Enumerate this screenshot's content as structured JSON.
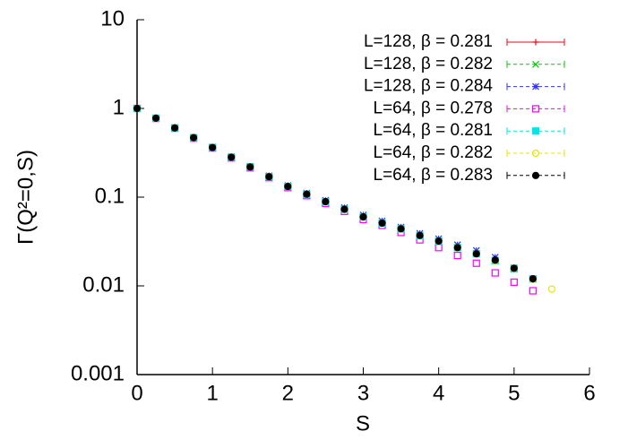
{
  "chart_data": {
    "type": "scatter",
    "y_label": "Γ(Q²=0,S)",
    "x_label": "S",
    "log_y": true,
    "legend": "top-right",
    "xlim": [
      0,
      6
    ],
    "xticks": [
      0,
      1,
      2,
      3,
      4,
      5,
      6
    ],
    "ylim": [
      0.001,
      10
    ],
    "yticks": [
      10,
      1,
      0.1,
      0.01,
      0.001
    ],
    "x": [
      0,
      0.25,
      0.5,
      0.75,
      1,
      1.25,
      1.5,
      1.75,
      2,
      2.25,
      2.5,
      2.75,
      3,
      3.25,
      3.5,
      3.75,
      4,
      4.25,
      4.5,
      4.75,
      5,
      5.25,
      5.5
    ],
    "series": [
      {
        "name": "L=128, β = 0.281",
        "color": "#ff0000",
        "marker": "plus",
        "values": [
          1,
          0.776,
          0.603,
          0.468,
          0.363,
          0.282,
          0.219,
          0.17,
          0.132,
          0.108,
          0.089,
          0.073,
          0.06,
          0.051,
          0.044,
          0.037,
          0.032,
          0.027,
          0.023,
          0.0195,
          0.0158,
          0.0122,
          null
        ]
      },
      {
        "name": "L=128, β = 0.282",
        "color": "#00cc00",
        "marker": "cross",
        "values": [
          1,
          0.776,
          0.603,
          0.468,
          0.363,
          0.282,
          0.219,
          0.17,
          0.132,
          0.108,
          0.089,
          0.073,
          0.06,
          0.051,
          0.044,
          0.037,
          0.032,
          0.027,
          0.023,
          0.0195,
          0.016,
          null,
          null
        ]
      },
      {
        "name": "L=128, β = 0.284",
        "color": "#3333ff",
        "marker": "star",
        "values": [
          1,
          0.78,
          0.608,
          0.472,
          0.367,
          0.286,
          0.223,
          0.174,
          0.135,
          0.111,
          0.092,
          0.076,
          0.063,
          0.054,
          0.046,
          0.039,
          0.034,
          0.029,
          0.025,
          0.021,
          null,
          null,
          null
        ]
      },
      {
        "name": "L=64, β = 0.278",
        "color": "#ff00ff",
        "marker": "square-open",
        "values": [
          1,
          0.772,
          0.598,
          0.462,
          0.358,
          0.277,
          0.214,
          0.166,
          0.128,
          0.104,
          0.085,
          0.069,
          0.056,
          0.048,
          0.04,
          0.033,
          0.027,
          0.022,
          0.018,
          0.014,
          0.011,
          0.0088,
          null
        ]
      },
      {
        "name": "L=64, β = 0.281",
        "color": "#00e5e5",
        "marker": "square-filled",
        "values": [
          1,
          0.776,
          0.603,
          0.468,
          0.363,
          0.282,
          0.219,
          0.17,
          0.132,
          0.108,
          0.089,
          0.073,
          0.06,
          0.051,
          0.044,
          0.037,
          0.032,
          0.027,
          0.023,
          0.0192,
          0.0155,
          0.012,
          null
        ]
      },
      {
        "name": "L=64, β = 0.282",
        "color": "#e5e500",
        "marker": "circle-open",
        "values": [
          1,
          0.776,
          0.603,
          0.468,
          0.363,
          0.282,
          0.219,
          0.17,
          0.132,
          0.108,
          0.089,
          0.073,
          0.06,
          0.051,
          0.044,
          0.037,
          0.032,
          0.027,
          0.023,
          0.0192,
          0.0155,
          0.0118,
          0.0092
        ]
      },
      {
        "name": "L=64, β = 0.283",
        "color": "#000000",
        "marker": "circle-filled",
        "values": [
          1,
          0.776,
          0.603,
          0.468,
          0.363,
          0.282,
          0.219,
          0.17,
          0.132,
          0.108,
          0.089,
          0.073,
          0.06,
          0.051,
          0.044,
          0.037,
          0.032,
          0.027,
          0.023,
          0.0195,
          0.0158,
          0.012,
          null
        ]
      }
    ]
  }
}
